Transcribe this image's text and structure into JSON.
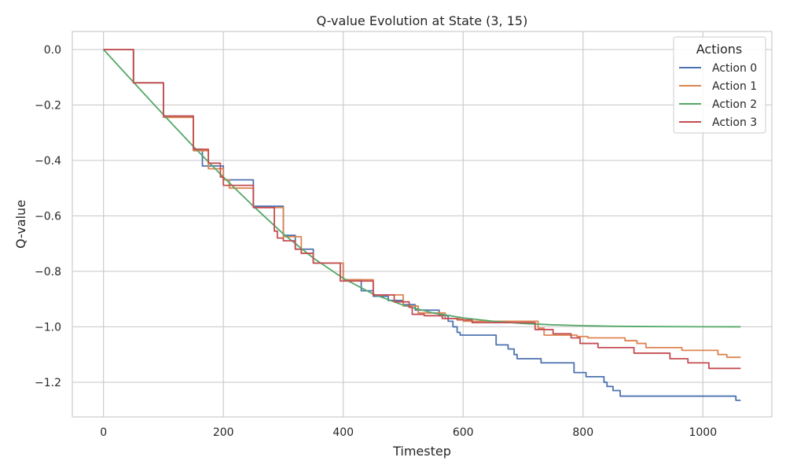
{
  "chart_data": {
    "type": "line",
    "title": "Q-value Evolution at State (3, 15)",
    "xlabel": "Timestep",
    "ylabel": "Q-value",
    "xlim": [
      -52,
      1115
    ],
    "ylim": [
      -1.325,
      0.065
    ],
    "xticks": [
      0,
      200,
      400,
      600,
      800,
      1000
    ],
    "yticks": [
      0.0,
      -0.2,
      -0.4,
      -0.6,
      -0.8,
      -1.0,
      -1.2
    ],
    "xtick_labels": [
      "0",
      "200",
      "400",
      "600",
      "800",
      "1000"
    ],
    "ytick_labels": [
      "0.0",
      "−0.2",
      "−0.4",
      "−0.6",
      "−0.8",
      "−1.0",
      "−1.2"
    ],
    "grid": true,
    "legend": {
      "title": "Actions",
      "position": "top-right"
    },
    "series": [
      {
        "name": "Action 0",
        "color": "#4c72b0",
        "step": true,
        "points": [
          [
            0,
            0.0
          ],
          [
            50,
            -0.12
          ],
          [
            100,
            -0.24
          ],
          [
            150,
            -0.36
          ],
          [
            165,
            -0.42
          ],
          [
            175,
            -0.42
          ],
          [
            200,
            -0.47
          ],
          [
            250,
            -0.565
          ],
          [
            300,
            -0.67
          ],
          [
            320,
            -0.72
          ],
          [
            350,
            -0.77
          ],
          [
            400,
            -0.83
          ],
          [
            430,
            -0.87
          ],
          [
            450,
            -0.89
          ],
          [
            475,
            -0.905
          ],
          [
            500,
            -0.92
          ],
          [
            520,
            -0.94
          ],
          [
            560,
            -0.96
          ],
          [
            575,
            -0.98
          ],
          [
            583,
            -1.0
          ],
          [
            590,
            -1.02
          ],
          [
            595,
            -1.03
          ],
          [
            655,
            -1.065
          ],
          [
            675,
            -1.08
          ],
          [
            685,
            -1.1
          ],
          [
            690,
            -1.115
          ],
          [
            730,
            -1.13
          ],
          [
            785,
            -1.165
          ],
          [
            805,
            -1.18
          ],
          [
            835,
            -1.2
          ],
          [
            840,
            -1.215
          ],
          [
            850,
            -1.23
          ],
          [
            862,
            -1.25
          ],
          [
            1055,
            -1.265
          ],
          [
            1063,
            -1.265
          ]
        ]
      },
      {
        "name": "Action 1",
        "color": "#dd8452",
        "step": true,
        "points": [
          [
            0,
            0.0
          ],
          [
            50,
            -0.12
          ],
          [
            100,
            -0.245
          ],
          [
            150,
            -0.365
          ],
          [
            175,
            -0.43
          ],
          [
            200,
            -0.47
          ],
          [
            210,
            -0.5
          ],
          [
            250,
            -0.57
          ],
          [
            300,
            -0.675
          ],
          [
            330,
            -0.735
          ],
          [
            350,
            -0.77
          ],
          [
            400,
            -0.83
          ],
          [
            450,
            -0.885
          ],
          [
            500,
            -0.925
          ],
          [
            525,
            -0.95
          ],
          [
            570,
            -0.97
          ],
          [
            600,
            -0.98
          ],
          [
            725,
            -1.005
          ],
          [
            735,
            -1.03
          ],
          [
            760,
            -1.03
          ],
          [
            790,
            -1.035
          ],
          [
            808,
            -1.04
          ],
          [
            870,
            -1.05
          ],
          [
            890,
            -1.06
          ],
          [
            905,
            -1.075
          ],
          [
            965,
            -1.085
          ],
          [
            1025,
            -1.1
          ],
          [
            1040,
            -1.11
          ],
          [
            1063,
            -1.11
          ]
        ]
      },
      {
        "name": "Action 2",
        "color": "#55a868",
        "step": false,
        "points": [
          [
            0,
            0.0
          ],
          [
            50,
            -0.118
          ],
          [
            100,
            -0.235
          ],
          [
            150,
            -0.35
          ],
          [
            200,
            -0.46
          ],
          [
            250,
            -0.565
          ],
          [
            300,
            -0.665
          ],
          [
            350,
            -0.752
          ],
          [
            400,
            -0.825
          ],
          [
            450,
            -0.882
          ],
          [
            500,
            -0.922
          ],
          [
            550,
            -0.95
          ],
          [
            600,
            -0.968
          ],
          [
            650,
            -0.98
          ],
          [
            700,
            -0.988
          ],
          [
            750,
            -0.993
          ],
          [
            800,
            -0.996
          ],
          [
            850,
            -0.998
          ],
          [
            900,
            -0.999
          ],
          [
            950,
            -0.9995
          ],
          [
            1000,
            -0.9998
          ],
          [
            1063,
            -1.0
          ]
        ]
      },
      {
        "name": "Action 3",
        "color": "#c44e52",
        "step": true,
        "points": [
          [
            0,
            0.0
          ],
          [
            50,
            -0.12
          ],
          [
            100,
            -0.24
          ],
          [
            150,
            -0.36
          ],
          [
            175,
            -0.41
          ],
          [
            195,
            -0.46
          ],
          [
            200,
            -0.49
          ],
          [
            250,
            -0.57
          ],
          [
            285,
            -0.655
          ],
          [
            290,
            -0.68
          ],
          [
            300,
            -0.69
          ],
          [
            320,
            -0.72
          ],
          [
            330,
            -0.735
          ],
          [
            350,
            -0.77
          ],
          [
            395,
            -0.835
          ],
          [
            450,
            -0.885
          ],
          [
            485,
            -0.91
          ],
          [
            510,
            -0.93
          ],
          [
            515,
            -0.955
          ],
          [
            535,
            -0.96
          ],
          [
            565,
            -0.97
          ],
          [
            590,
            -0.975
          ],
          [
            615,
            -0.985
          ],
          [
            690,
            -0.985
          ],
          [
            720,
            -1.01
          ],
          [
            750,
            -1.025
          ],
          [
            780,
            -1.04
          ],
          [
            795,
            -1.06
          ],
          [
            825,
            -1.075
          ],
          [
            885,
            -1.095
          ],
          [
            945,
            -1.115
          ],
          [
            975,
            -1.13
          ],
          [
            1010,
            -1.15
          ],
          [
            1063,
            -1.15
          ]
        ]
      }
    ]
  }
}
